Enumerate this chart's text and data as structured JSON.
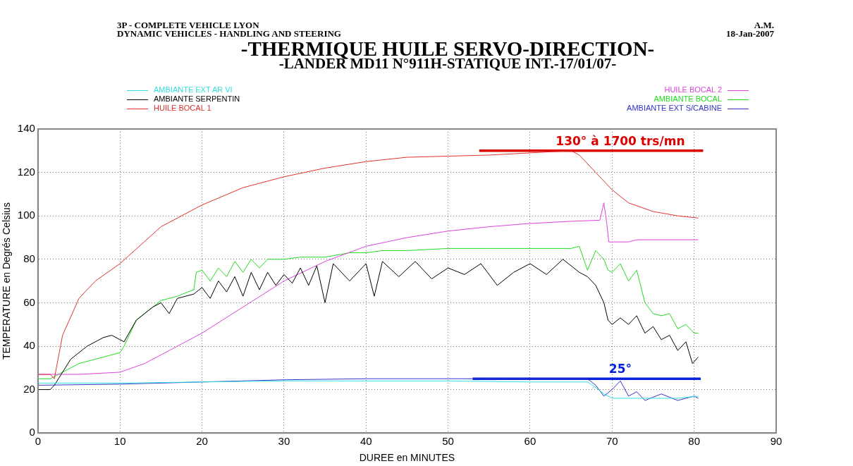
{
  "chart_data": {
    "type": "line",
    "title": "-THERMIQUE HUILE SERVO-DIRECTION-",
    "subtitle": "-LANDER MD11 N°911H-STATIQUE INT.-17/01/07-",
    "xlabel": "DUREE en MINUTES",
    "ylabel": "TEMPERATURE en Degrés Celsius",
    "annotations": [
      "3P - COMPLETE VEHICLE LYON",
      "DYNAMIC VEHICLES - HANDLING AND STEERING",
      "A.M.",
      "18-Jan-2007",
      {
        "text": "130° à 1700 trs/mn",
        "x": 71,
        "y": 130
      },
      {
        "text": "25°",
        "x": 71,
        "y": 25
      }
    ],
    "xlim": [
      0,
      90
    ],
    "xticks": [
      0,
      10,
      20,
      30,
      40,
      50,
      60,
      70,
      80,
      90
    ],
    "ylim": [
      0,
      140
    ],
    "yticks": [
      0,
      20,
      40,
      60,
      80,
      100,
      120,
      140
    ],
    "grid": true,
    "legend": "top",
    "marker": "none",
    "line_style": "solid",
    "series": [
      {
        "name": "AMBIANTE EXT AR VI",
        "color": "#33dddd",
        "x": [
          0,
          10,
          20,
          30,
          40,
          50,
          60,
          67,
          68,
          69,
          70,
          72,
          75,
          78,
          80.5
        ],
        "values": [
          23,
          23,
          23.5,
          24,
          24,
          24,
          23.5,
          23.5,
          21,
          18,
          16,
          16,
          16,
          16,
          17
        ]
      },
      {
        "name": "AMBIANTE SERPENTIN",
        "color": "#000000",
        "x": [
          0,
          1.5,
          2,
          4,
          6,
          8,
          9,
          10,
          10.5,
          12,
          14,
          15,
          16,
          17,
          19,
          20,
          21,
          22,
          23,
          24,
          25,
          26,
          27,
          28,
          29,
          30,
          31,
          32,
          33,
          34,
          35,
          36,
          38,
          40,
          41,
          42,
          44,
          46,
          48,
          50,
          52,
          54,
          56,
          58,
          60,
          62,
          64,
          66,
          67,
          68,
          69,
          69.5,
          70,
          71,
          72,
          73,
          74,
          75,
          76,
          77,
          78,
          79,
          79.8,
          80.5
        ],
        "values": [
          20,
          20,
          22,
          34,
          40,
          44,
          45,
          43,
          42,
          52,
          58,
          60,
          55,
          62,
          64,
          67,
          62,
          70,
          65,
          72,
          63,
          74,
          66,
          74,
          68,
          73,
          69,
          76,
          68,
          77,
          60,
          78,
          70,
          78,
          63,
          79,
          72,
          79,
          71,
          76,
          73,
          78,
          68,
          74,
          78,
          73,
          80,
          74,
          72,
          68,
          60,
          52,
          50,
          53,
          50,
          54,
          46,
          49,
          43,
          45,
          38,
          42,
          32,
          35
        ]
      },
      {
        "name": "HUILE BOCAL 1",
        "color": "#e03030",
        "x": [
          0,
          1.5,
          2,
          3,
          5,
          7,
          10,
          15,
          20,
          25,
          30,
          35,
          40,
          45,
          50,
          55,
          60,
          65,
          66,
          68,
          70,
          72,
          75,
          78,
          80.5
        ],
        "values": [
          27,
          27,
          25,
          45,
          62,
          70,
          78,
          95,
          105,
          113,
          118,
          122,
          125,
          127,
          127.5,
          128,
          129,
          130,
          128,
          120,
          112,
          106,
          102,
          100,
          99
        ]
      },
      {
        "name": "HUILE BOCAL 2",
        "color": "#dd44dd",
        "x": [
          0,
          5,
          10,
          13,
          15,
          20,
          25,
          30,
          35,
          40,
          45,
          50,
          55,
          60,
          65,
          68.5,
          69,
          69.3,
          69.6,
          72,
          73,
          80.5
        ],
        "values": [
          27,
          27,
          28,
          32,
          36,
          46,
          58,
          70,
          79,
          86,
          90,
          93,
          95,
          96.5,
          97.5,
          98,
          106,
          98,
          88,
          88,
          89,
          89
        ]
      },
      {
        "name": "AMBIANTE BOCAL",
        "color": "#22dd22",
        "x": [
          0,
          1.5,
          2,
          5,
          10,
          10.5,
          12,
          14,
          15,
          17,
          19,
          19.3,
          20,
          21,
          22,
          23,
          24,
          25,
          26,
          27,
          28,
          30,
          32,
          35,
          38,
          40,
          42,
          45,
          50,
          55,
          60,
          65,
          66,
          67,
          68,
          69,
          69.5,
          70,
          71,
          72,
          73,
          74,
          75,
          76,
          77,
          78,
          79,
          80,
          80.5
        ],
        "values": [
          25,
          25,
          26,
          32,
          37,
          40,
          52,
          58,
          61,
          63,
          66,
          74,
          75,
          70,
          76,
          72,
          79,
          74,
          80,
          76,
          80,
          80,
          81,
          81,
          83,
          83,
          84,
          84,
          85,
          85,
          85,
          85,
          86,
          75,
          84,
          80,
          75,
          74,
          78,
          70,
          75,
          60,
          55,
          54,
          55,
          48,
          50,
          46,
          46
        ]
      },
      {
        "name": "AMBIANTE EXT S/CABINE",
        "color": "#3333cc",
        "x": [
          0,
          10,
          20,
          30,
          40,
          50,
          60,
          67,
          68,
          69,
          70,
          71,
          72,
          73,
          74,
          76,
          78,
          80,
          80.5
        ],
        "values": [
          22,
          22.5,
          23.5,
          24.5,
          25,
          25,
          25,
          25,
          22,
          17,
          20,
          24,
          17,
          19,
          15,
          18,
          15,
          17,
          16
        ]
      },
      {
        "color": "#dd0000",
        "x": [
          53.8,
          81.1
        ],
        "values": [
          130,
          130
        ]
      },
      {
        "color": "#0022dd",
        "x": [
          53,
          80.8
        ],
        "values": [
          25,
          25
        ]
      }
    ]
  }
}
